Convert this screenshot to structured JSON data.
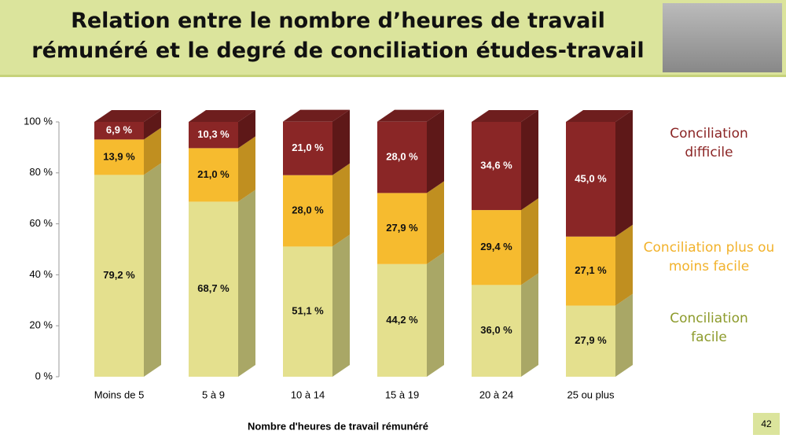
{
  "title": "Relation entre le nombre d’heures de travail rémunéré et le degré de conciliation études-travail",
  "page_number": "42",
  "chart_data": {
    "type": "bar",
    "stacked": true,
    "categories": [
      "Moins de 5",
      "5 à 9",
      "10 à 14",
      "15 à 19",
      "20 à 24",
      "25 ou plus"
    ],
    "xlabel": "Nombre d'heures de travail rémunéré",
    "ylim": [
      0,
      100
    ],
    "yticks": [
      {
        "value": 0,
        "label": "0 %"
      },
      {
        "value": 20,
        "label": "20 %"
      },
      {
        "value": 40,
        "label": "40 %"
      },
      {
        "value": 60,
        "label": "60 %"
      },
      {
        "value": 80,
        "label": "80 %"
      },
      {
        "value": 100,
        "label": "100 %"
      }
    ],
    "series": [
      {
        "name": "Conciliation facile",
        "color": "#e4e08e",
        "side_color": "#a9a766",
        "legend_color": "#8d9b2c",
        "values": [
          79.2,
          68.7,
          51.1,
          44.2,
          36.0,
          27.9
        ],
        "value_labels": [
          "79,2 %",
          "68,7 %",
          "51,1 %",
          "44,2 %",
          "36,0 %",
          "27,9 %"
        ]
      },
      {
        "name": "Conciliation plus ou moins facile",
        "color": "#f6bb2f",
        "side_color": "#c08f20",
        "legend_color": "#f2b22b",
        "values": [
          13.9,
          21.0,
          28.0,
          27.9,
          29.4,
          27.1
        ],
        "value_labels": [
          "13,9 %",
          "21,0 %",
          "28,0 %",
          "27,9 %",
          "29,4 %",
          "27,1 %"
        ]
      },
      {
        "name": "Conciliation difficile",
        "color": "#8a2626",
        "side_color": "#5e1818",
        "legend_color": "#8b2525",
        "values": [
          6.9,
          10.3,
          21.0,
          28.0,
          34.6,
          45.0
        ],
        "value_labels": [
          "6,9 %",
          "10,3 %",
          "21,0 %",
          "28,0 %",
          "34,6 %",
          "45,0 %"
        ]
      }
    ]
  }
}
